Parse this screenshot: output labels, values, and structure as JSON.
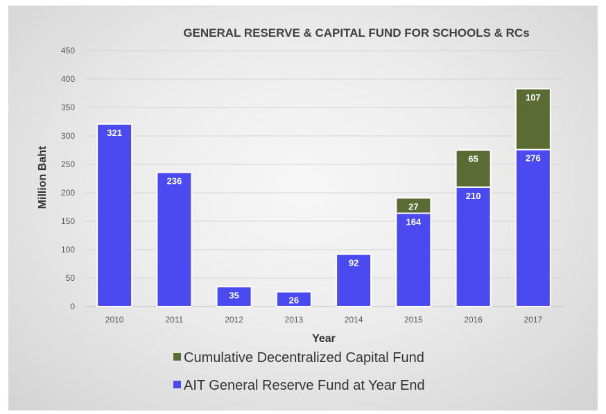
{
  "chart_data": {
    "type": "bar",
    "stacked": true,
    "title": "GENERAL RESERVE & CAPITAL FUND  FOR SCHOOLS & RCs",
    "xlabel": "Year",
    "ylabel": "Million Baht",
    "ylim": [
      0,
      450
    ],
    "yticks": [
      "0",
      "50",
      "100",
      "150",
      "200",
      "250",
      "300",
      "350",
      "400",
      "450"
    ],
    "grid": true,
    "legend_position": "bottom",
    "categories": [
      "2010",
      "2011",
      "2012",
      "2013",
      "2014",
      "2015",
      "2016",
      "2017"
    ],
    "series": [
      {
        "name": "AIT General Reserve Fund at Year End",
        "color": "#4a4af0",
        "values": [
          321,
          236,
          35,
          26,
          92,
          164,
          210,
          276
        ],
        "labels": [
          "321",
          "236",
          "35",
          "26",
          "92",
          "164",
          "210",
          "276"
        ]
      },
      {
        "name": "Cumulative Decentralized Capital Fund",
        "color": "#5a6b34",
        "values": [
          0,
          0,
          0,
          0,
          0,
          27,
          65,
          107
        ],
        "labels": [
          "",
          "",
          "",
          "",
          "",
          "27",
          "65",
          "107"
        ]
      }
    ]
  }
}
